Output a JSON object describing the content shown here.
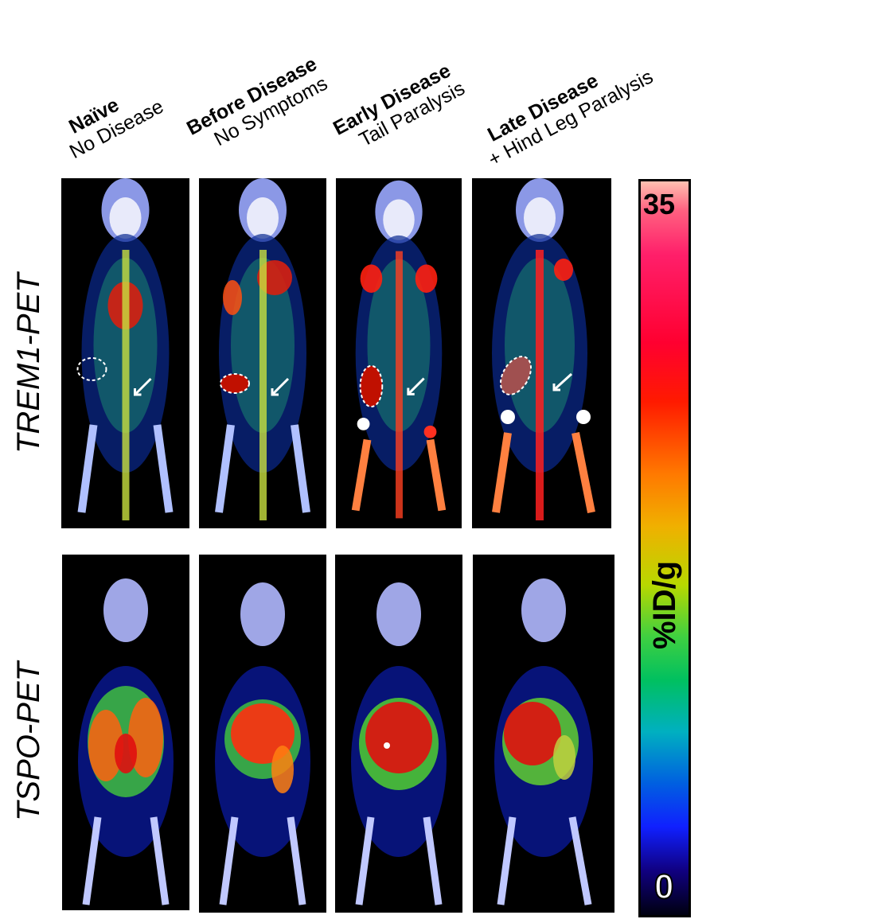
{
  "columns": [
    {
      "title": "Naïve",
      "subtitle": "No Disease"
    },
    {
      "title": "Before Disease",
      "subtitle": "No Symptoms"
    },
    {
      "title": "Early Disease",
      "subtitle": "Tail Paralysis"
    },
    {
      "title": "Late Disease",
      "subtitle": "+ Hind Leg Paralysis"
    }
  ],
  "rows": [
    {
      "label": "TREM1-PET"
    },
    {
      "label": "TSPO-PET"
    }
  ],
  "colorbar": {
    "max": "35",
    "min": "0",
    "unit": "%ID/g"
  }
}
